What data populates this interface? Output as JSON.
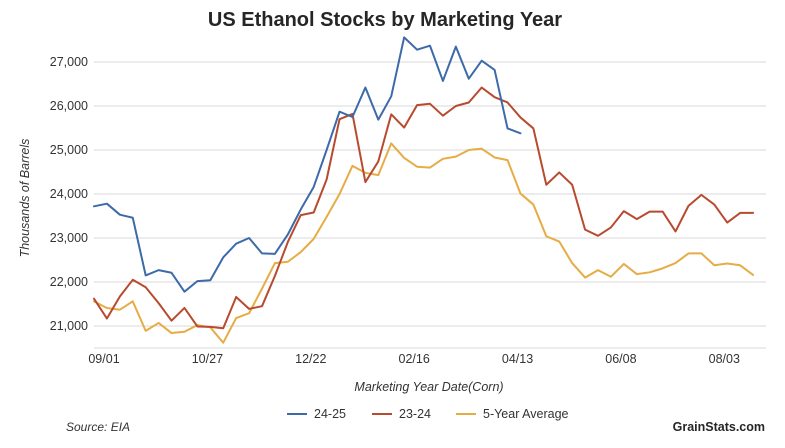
{
  "chart_data": {
    "type": "line",
    "title": "US Ethanol Stocks by Marketing Year",
    "xlabel": "Marketing Year Date(Corn)",
    "ylabel": "Thousands of Barrels",
    "ylim": [
      20500,
      27500
    ],
    "yticks": [
      21000,
      22000,
      23000,
      24000,
      25000,
      26000,
      27000
    ],
    "ytick_labels": [
      "21,000",
      "22,000",
      "23,000",
      "24,000",
      "25,000",
      "26,000",
      "27,000"
    ],
    "xticks": [
      {
        "week": 0,
        "label": "09/01"
      },
      {
        "week": 8,
        "label": "10/27"
      },
      {
        "week": 16,
        "label": "12/22"
      },
      {
        "week": 24,
        "label": "02/16"
      },
      {
        "week": 32,
        "label": "04/13"
      },
      {
        "week": 40,
        "label": "06/08"
      },
      {
        "week": 48,
        "label": "08/03"
      }
    ],
    "xlim": [
      0,
      52
    ],
    "grid": true,
    "legend_position": "bottom-center",
    "series": [
      {
        "name": "24-25",
        "color": "#3d6aa8",
        "values": [
          23720,
          23780,
          23530,
          23460,
          22150,
          22270,
          22210,
          21780,
          22020,
          22040,
          22560,
          22870,
          23000,
          22650,
          22640,
          23080,
          23650,
          24160,
          25000,
          25870,
          25750,
          26420,
          25690,
          26220,
          27560,
          27280,
          27370,
          26570,
          27350,
          26620,
          27030,
          26820,
          25490,
          25380
        ]
      },
      {
        "name": "23-24",
        "color": "#b84a2f",
        "values": [
          21620,
          21170,
          21670,
          22050,
          21880,
          21520,
          21120,
          21410,
          20990,
          20980,
          20950,
          21660,
          21390,
          21450,
          22140,
          22910,
          23520,
          23580,
          24330,
          25700,
          25820,
          24270,
          24740,
          25810,
          25510,
          26020,
          26050,
          25780,
          26000,
          26080,
          26420,
          26200,
          26080,
          25740,
          25490,
          24210,
          24490,
          24210,
          23190,
          23050,
          23240,
          23610,
          23430,
          23600,
          23600,
          23150,
          23730,
          23980,
          23760,
          23350,
          23570,
          23570
        ]
      },
      {
        "name": "5-Year Average",
        "color": "#e6ac45",
        "values": [
          21560,
          21410,
          21370,
          21560,
          20890,
          21070,
          20840,
          20870,
          21020,
          20970,
          20620,
          21180,
          21290,
          21850,
          22430,
          22460,
          22680,
          22980,
          23480,
          24000,
          24640,
          24480,
          24430,
          25150,
          24820,
          24620,
          24600,
          24800,
          24850,
          25000,
          25030,
          24830,
          24770,
          24010,
          23760,
          23040,
          22920,
          22430,
          22100,
          22270,
          22120,
          22410,
          22180,
          22220,
          22310,
          22430,
          22650,
          22650,
          22380,
          22420,
          22380,
          22160
        ]
      }
    ]
  },
  "footer": {
    "source": "Source: EIA",
    "brand": "GrainStats.com"
  }
}
